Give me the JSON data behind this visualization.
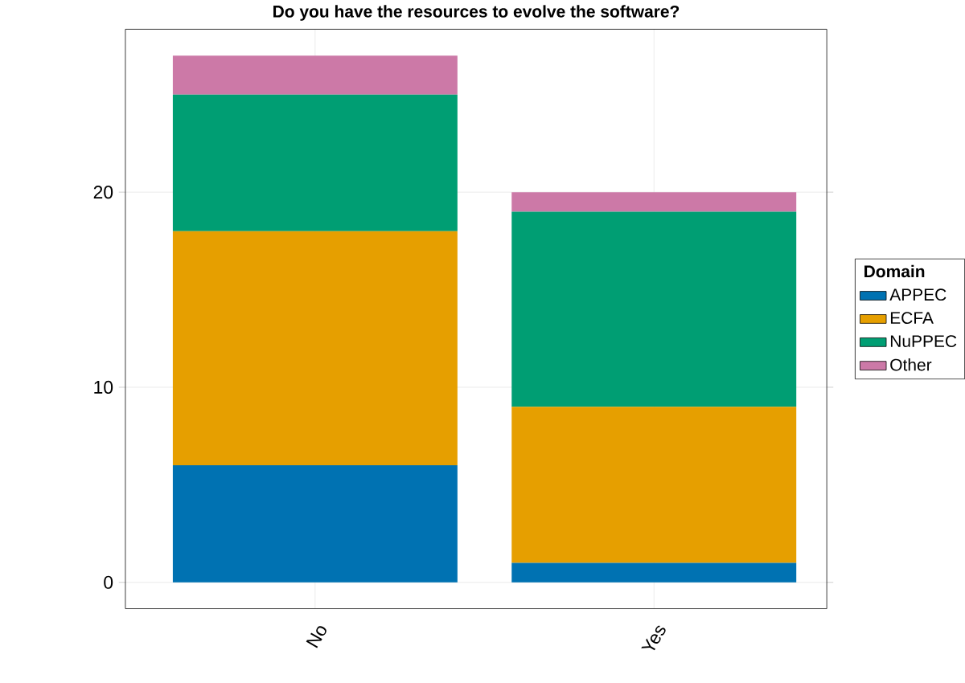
{
  "chart_data": {
    "type": "bar",
    "title": "Do you have the resources to evolve the software?",
    "categories": [
      "No",
      "Yes"
    ],
    "stacked": true,
    "legend_title": "Domain",
    "legend": "right",
    "grid": true,
    "ylim": [
      -1.35,
      28.35
    ],
    "yticks": [
      0,
      10,
      20
    ],
    "series": [
      {
        "name": "APPEC",
        "color": "#0072b2",
        "values": [
          6,
          1
        ]
      },
      {
        "name": "ECFA",
        "color": "#e69f00",
        "values": [
          12,
          8
        ]
      },
      {
        "name": "NuPPEC",
        "color": "#009e73",
        "values": [
          7,
          10
        ]
      },
      {
        "name": "Other",
        "color": "#cc79a7",
        "values": [
          2,
          1
        ]
      }
    ]
  }
}
